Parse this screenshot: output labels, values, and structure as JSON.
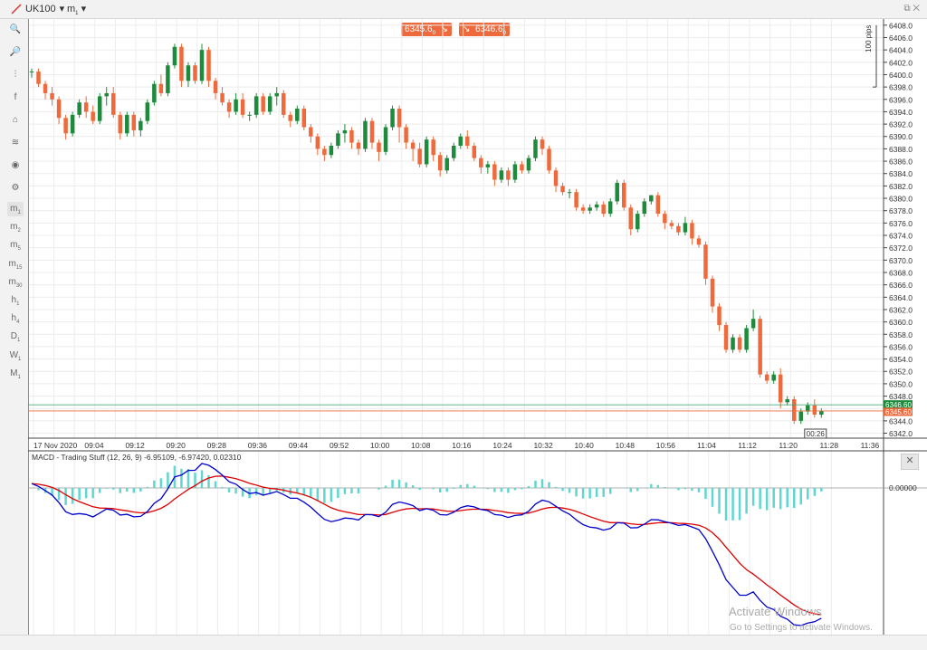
{
  "toolbar": {
    "symbol": "UK100",
    "timeframe": "m",
    "timeframe_sub": "1"
  },
  "sell_button": {
    "value": "6345.6",
    "sub": "0"
  },
  "buy_button": {
    "value": "6346.6",
    "sub": "0"
  },
  "sidebar": {
    "tools": [
      "zoom-in-icon",
      "zoom-out-icon",
      "candles-icon",
      "facebook-icon",
      "indicator-icon",
      "layers-icon",
      "eye-icon",
      "settings-icon"
    ],
    "timeframes": [
      {
        "l": "m",
        "s": "1",
        "active": true
      },
      {
        "l": "m",
        "s": "2"
      },
      {
        "l": "m",
        "s": "5"
      },
      {
        "l": "m",
        "s": "15"
      },
      {
        "l": "m",
        "s": "30"
      },
      {
        "l": "h",
        "s": "1"
      },
      {
        "l": "h",
        "s": "4"
      },
      {
        "l": "D",
        "s": "1"
      },
      {
        "l": "W",
        "s": "1"
      },
      {
        "l": "M",
        "s": "1"
      }
    ]
  },
  "colors": {
    "bull": "#1e8a3c",
    "bear": "#ee6a3c",
    "macd": "#0000cc",
    "signal": "#dd0000",
    "hist": "#5fd6d0",
    "grid": "#ececec"
  },
  "chart_data": [
    {
      "type": "candlestick",
      "pips_label": "100 pips",
      "x_ticks": [
        "17 Nov 2020",
        "09:04",
        "09:12",
        "09:20",
        "09:28",
        "09:36",
        "09:44",
        "09:52",
        "10:00",
        "10:08",
        "10:16",
        "10:24",
        "10:32",
        "10:40",
        "10:48",
        "10:56",
        "11:04",
        "11:12",
        "11:20",
        "11:28",
        "11:36"
      ],
      "y_ticks": [
        "6408.0",
        "6406.0",
        "6404.0",
        "6402.0",
        "6400.0",
        "6398.0",
        "6396.0",
        "6394.0",
        "6392.0",
        "6390.0",
        "6388.0",
        "6386.0",
        "6384.0",
        "6382.0",
        "6380.0",
        "6378.0",
        "6376.0",
        "6374.0",
        "6372.0",
        "6370.0",
        "6368.0",
        "6366.0",
        "6364.0",
        "6362.0",
        "6360.0",
        "6358.0",
        "6356.0",
        "6354.0",
        "6352.0",
        "6350.0",
        "6348.0",
        "6346.0",
        "6344.0",
        "6342.0"
      ],
      "ylim": [
        6341.2,
        6409.0
      ],
      "price_buy": "6346.60",
      "price_sell": "6345.60",
      "countdown": "00:26",
      "candles": [
        [
          6400.5,
          6401,
          6399.5,
          6400.5
        ],
        [
          6400.5,
          6401,
          6398,
          6398.5
        ],
        [
          6398.5,
          6399,
          6396,
          6397
        ],
        [
          6397,
          6398,
          6395,
          6396
        ],
        [
          6396,
          6396.5,
          6392,
          6393
        ],
        [
          6393,
          6393.5,
          6389.5,
          6390.5
        ],
        [
          6390.5,
          6394,
          6390,
          6393.5
        ],
        [
          6393.5,
          6396,
          6393,
          6395.5
        ],
        [
          6395.5,
          6396.5,
          6393,
          6394
        ],
        [
          6394,
          6395,
          6392,
          6392.5
        ],
        [
          6392.5,
          6397,
          6392,
          6396.5
        ],
        [
          6396.5,
          6398,
          6395,
          6397
        ],
        [
          6397,
          6398,
          6393,
          6393.5
        ],
        [
          6393.5,
          6394,
          6389.5,
          6390.5
        ],
        [
          6390.5,
          6394,
          6390,
          6393.5
        ],
        [
          6393.5,
          6394,
          6390,
          6391
        ],
        [
          6391,
          6393,
          6390,
          6392.5
        ],
        [
          6392.5,
          6396,
          6392,
          6395.5
        ],
        [
          6395.5,
          6399,
          6395,
          6398.5
        ],
        [
          6398.5,
          6400,
          6396.5,
          6397
        ],
        [
          6397,
          6402,
          6396.5,
          6401.5
        ],
        [
          6401.5,
          6405,
          6401,
          6404.5
        ],
        [
          6404.5,
          6405,
          6398,
          6399
        ],
        [
          6399,
          6402,
          6398,
          6401.5
        ],
        [
          6401.5,
          6402,
          6398.5,
          6399
        ],
        [
          6399,
          6405,
          6398.5,
          6404
        ],
        [
          6404,
          6404.5,
          6398,
          6399
        ],
        [
          6399,
          6399.5,
          6396,
          6397
        ],
        [
          6397,
          6398,
          6395,
          6395.5
        ],
        [
          6395.5,
          6396,
          6393,
          6394
        ],
        [
          6394,
          6397,
          6393.5,
          6396
        ],
        [
          6396,
          6397,
          6393,
          6393.5
        ],
        [
          6393.5,
          6394,
          6392.5,
          6393.5
        ],
        [
          6393.5,
          6397,
          6393,
          6396.5
        ],
        [
          6396.5,
          6397,
          6393.5,
          6394
        ],
        [
          6394,
          6397,
          6393.5,
          6396.5
        ],
        [
          6396.5,
          6398,
          6395,
          6397
        ],
        [
          6397,
          6397.5,
          6393,
          6393.5
        ],
        [
          6393.5,
          6394,
          6391.5,
          6392.5
        ],
        [
          6392.5,
          6395,
          6392,
          6394.5
        ],
        [
          6394.5,
          6395,
          6391,
          6391.5
        ],
        [
          6391.5,
          6392,
          6389,
          6390
        ],
        [
          6390,
          6390.5,
          6387,
          6388
        ],
        [
          6388,
          6388.5,
          6386,
          6387
        ],
        [
          6387,
          6389,
          6386.5,
          6388.5
        ],
        [
          6388.5,
          6391,
          6388,
          6390.5
        ],
        [
          6390.5,
          6392,
          6389,
          6391
        ],
        [
          6391,
          6391.5,
          6388,
          6389
        ],
        [
          6389,
          6389.5,
          6387,
          6388
        ],
        [
          6388,
          6393,
          6387.5,
          6392.5
        ],
        [
          6392.5,
          6393,
          6388,
          6389
        ],
        [
          6389,
          6389.5,
          6386,
          6387.5
        ],
        [
          6387.5,
          6392,
          6387,
          6391.5
        ],
        [
          6391.5,
          6395,
          6391,
          6394.5
        ],
        [
          6394.5,
          6395,
          6389,
          6391.5
        ],
        [
          6391.5,
          6392,
          6388,
          6389
        ],
        [
          6389,
          6389.5,
          6386,
          6388
        ],
        [
          6388,
          6389,
          6385,
          6385.5
        ],
        [
          6385.5,
          6390,
          6385,
          6389.5
        ],
        [
          6389.5,
          6390,
          6386,
          6387
        ],
        [
          6387,
          6387.5,
          6383.5,
          6384.5
        ],
        [
          6384.5,
          6387,
          6384,
          6386.5
        ],
        [
          6386.5,
          6389,
          6386,
          6388.5
        ],
        [
          6388.5,
          6390.5,
          6388,
          6390
        ],
        [
          6390,
          6391,
          6388,
          6388.5
        ],
        [
          6388.5,
          6389,
          6386,
          6386.5
        ],
        [
          6386.5,
          6387,
          6384,
          6385
        ],
        [
          6385,
          6386,
          6384,
          6385.5
        ],
        [
          6385.5,
          6386,
          6382,
          6383
        ],
        [
          6383,
          6385,
          6382.5,
          6384.5
        ],
        [
          6384.5,
          6385,
          6382,
          6383
        ],
        [
          6383,
          6386,
          6382.5,
          6385.5
        ],
        [
          6385.5,
          6386,
          6384,
          6384.5
        ],
        [
          6384.5,
          6387,
          6384,
          6386.5
        ],
        [
          6386.5,
          6390,
          6386,
          6389.5
        ],
        [
          6389.5,
          6390,
          6387,
          6388
        ],
        [
          6388,
          6388.5,
          6384,
          6384.5
        ],
        [
          6384.5,
          6385,
          6381,
          6382
        ],
        [
          6382,
          6382.5,
          6380.5,
          6381
        ],
        [
          6381,
          6381.5,
          6380,
          6381
        ],
        [
          6381,
          6381.5,
          6378,
          6378.5
        ],
        [
          6378.5,
          6379,
          6377.5,
          6378
        ],
        [
          6378,
          6379,
          6377.5,
          6378.5
        ],
        [
          6378.5,
          6379.5,
          6378,
          6379
        ],
        [
          6379,
          6379.5,
          6377,
          6377.5
        ],
        [
          6377.5,
          6380,
          6377,
          6379.5
        ],
        [
          6379.5,
          6383,
          6379,
          6382.5
        ],
        [
          6382.5,
          6383,
          6378,
          6378.5
        ],
        [
          6378.5,
          6379,
          6374,
          6375
        ],
        [
          6375,
          6378,
          6374.5,
          6377.5
        ],
        [
          6377.5,
          6380,
          6377,
          6379.5
        ],
        [
          6379.5,
          6380.5,
          6379,
          6380.5
        ],
        [
          6380.5,
          6381,
          6377,
          6377.5
        ],
        [
          6377.5,
          6378,
          6375,
          6376
        ],
        [
          6376,
          6376.5,
          6375,
          6375.5
        ],
        [
          6375.5,
          6376,
          6374,
          6374.5
        ],
        [
          6374.5,
          6377,
          6374,
          6376
        ],
        [
          6376,
          6376.5,
          6372.5,
          6373.5
        ],
        [
          6373.5,
          6374,
          6372,
          6372.5
        ],
        [
          6372.5,
          6373,
          6366,
          6367
        ],
        [
          6367,
          6367.5,
          6361.5,
          6362.5
        ],
        [
          6362.5,
          6363,
          6358.5,
          6359.5
        ],
        [
          6359.5,
          6360,
          6355,
          6355.5
        ],
        [
          6355.5,
          6358,
          6355,
          6357.5
        ],
        [
          6357.5,
          6358,
          6355,
          6355.5
        ],
        [
          6355.5,
          6359.5,
          6355,
          6359
        ],
        [
          6359,
          6362,
          6358.5,
          6360.5
        ],
        [
          6360.5,
          6361,
          6351,
          6351.5
        ],
        [
          6351.5,
          6352,
          6350,
          6350.5
        ],
        [
          6350.5,
          6352,
          6350,
          6351.5
        ],
        [
          6351.5,
          6352.5,
          6346,
          6347
        ],
        [
          6347,
          6348,
          6346.5,
          6347.5
        ],
        [
          6347.5,
          6348,
          6343.5,
          6344
        ],
        [
          6344,
          6346,
          6343.5,
          6345.5
        ],
        [
          6345.5,
          6347,
          6345,
          6346.5
        ],
        [
          6346.5,
          6347.5,
          6344.5,
          6345
        ],
        [
          6345,
          6346,
          6344.5,
          6345.6
        ]
      ]
    },
    {
      "type": "line",
      "title": "MACD - Trading Stuff (12, 26, 9) -6.95109, -6.97420, 0.02310",
      "y_tick": "0.00000",
      "series": [
        {
          "name": "MACD"
        },
        {
          "name": "Signal"
        },
        {
          "name": "Histogram"
        }
      ]
    }
  ],
  "watermark": {
    "line1": "Activate Windows",
    "line2": "Go to Settings to activate Windows."
  }
}
